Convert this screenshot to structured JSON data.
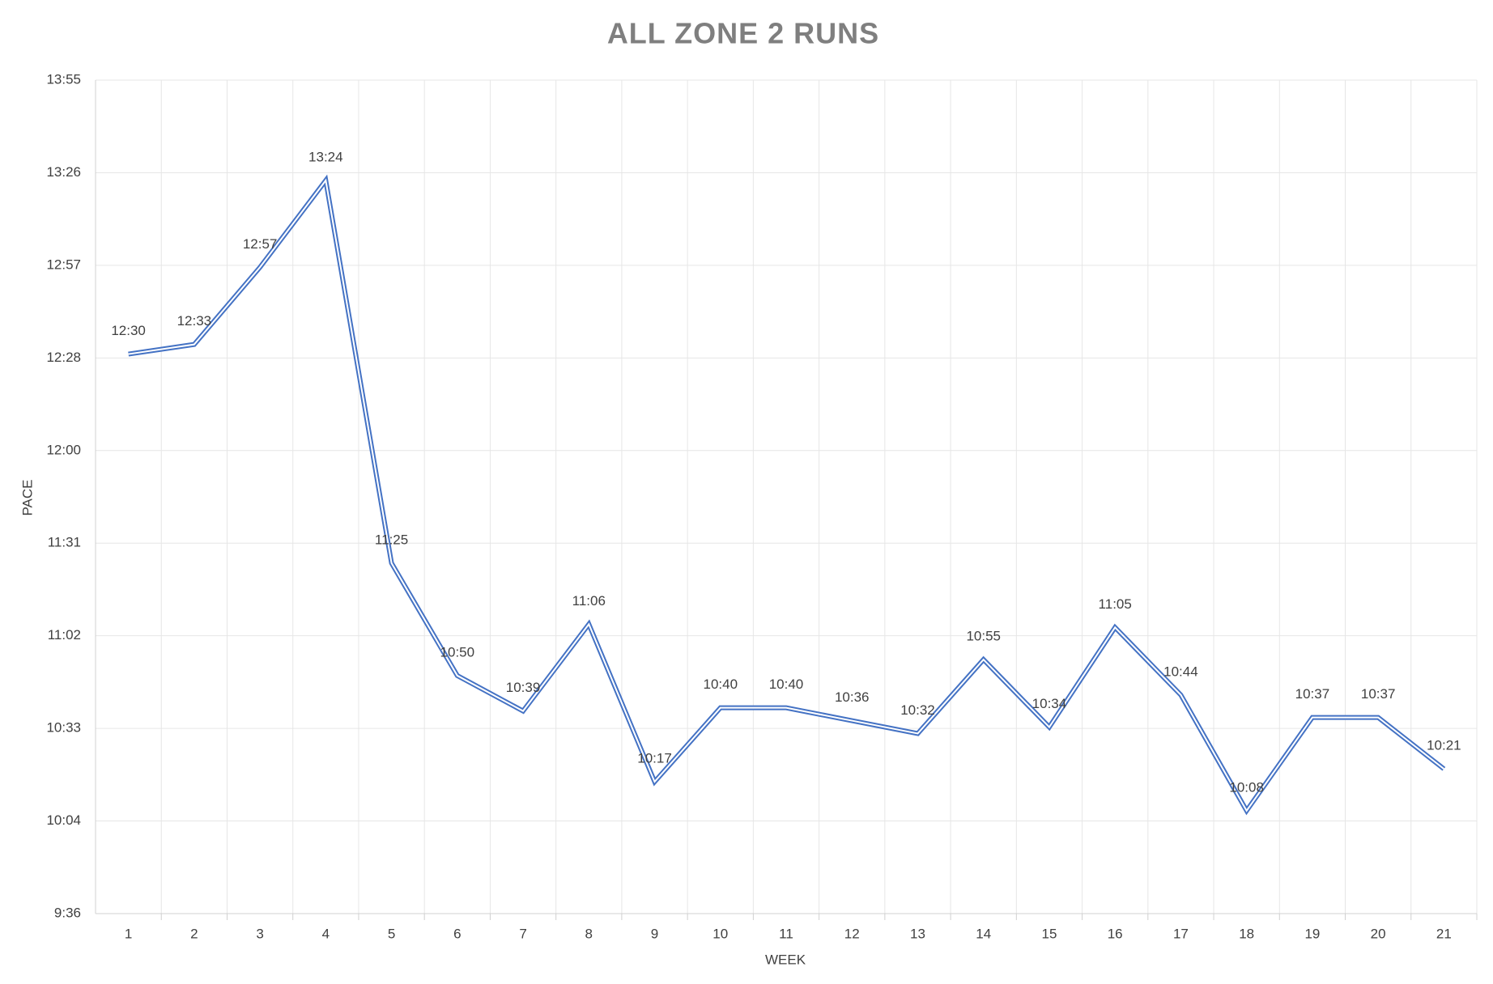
{
  "chart_data": {
    "type": "line",
    "title": "ALL ZONE 2 RUNS",
    "x_label": "WEEK",
    "y_label": "PACE",
    "categories": [
      "1",
      "2",
      "3",
      "4",
      "5",
      "6",
      "7",
      "8",
      "9",
      "10",
      "11",
      "12",
      "13",
      "14",
      "15",
      "16",
      "17",
      "18",
      "19",
      "20",
      "21"
    ],
    "series": [
      {
        "name": "Pace",
        "color": "#4472c4",
        "values": [
          750,
          753,
          777,
          804,
          685,
          650,
          639,
          666,
          617,
          640,
          640,
          636,
          632,
          655,
          634,
          665,
          644,
          608,
          637,
          637,
          621
        ],
        "value_labels": [
          "12:30",
          "12:33",
          "12:57",
          "13:24",
          "11:25",
          "10:50",
          "10:39",
          "11:06",
          "10:17",
          "10:40",
          "10:40",
          "10:36",
          "10:32",
          "10:55",
          "10:34",
          "11:05",
          "10:44",
          "10:08",
          "10:37",
          "10:37",
          "10:21"
        ]
      }
    ],
    "ylim": [
      576,
      835.2
    ],
    "yticks": [
      {
        "value": 576,
        "label": "9:36"
      },
      {
        "value": 604.8,
        "label": "10:04"
      },
      {
        "value": 633.6,
        "label": "10:33"
      },
      {
        "value": 662.4,
        "label": "11:02"
      },
      {
        "value": 691.2,
        "label": "11:31"
      },
      {
        "value": 720,
        "label": "12:00"
      },
      {
        "value": 748.8,
        "label": "12:28"
      },
      {
        "value": 777.6,
        "label": "12:57"
      },
      {
        "value": 806.4,
        "label": "13:26"
      },
      {
        "value": 835.2,
        "label": "13:55"
      }
    ],
    "grid": true
  }
}
